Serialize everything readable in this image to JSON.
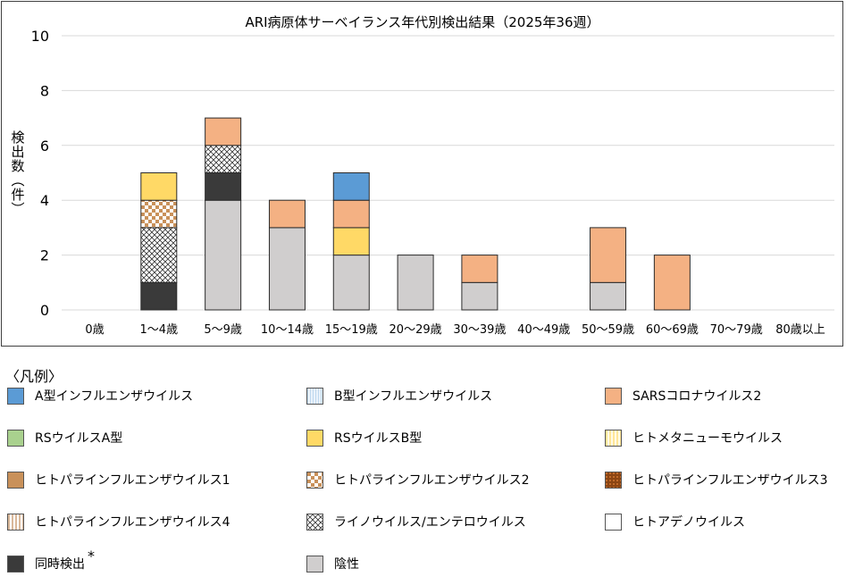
{
  "chart_data": {
    "type": "bar",
    "stacked": true,
    "title": "ARI病原体サーベイランス年代別検出結果（2025年36週）",
    "xlabel": "",
    "ylabel": "検出数（件）",
    "ylabel_chars": [
      "検",
      "出",
      "数",
      "︵",
      "件",
      "︶"
    ],
    "ylim": [
      0,
      10
    ],
    "yticks": [
      "0",
      "2",
      "4",
      "6",
      "8",
      "10"
    ],
    "grid": true,
    "categories": [
      "0歳",
      "1～4歳",
      "5～9歳",
      "10～14歳",
      "15～19歳",
      "20～29歳",
      "30～39歳",
      "40～49歳",
      "50～59歳",
      "60～69歳",
      "70～79歳",
      "80歳以上"
    ],
    "series": [
      {
        "name": "陰性",
        "key": "negative",
        "values": [
          0,
          0,
          4,
          3,
          2,
          2,
          1,
          0,
          1,
          0,
          0,
          0
        ]
      },
      {
        "name": "同時検出",
        "key": "coinfection",
        "values": [
          0,
          1,
          1,
          0,
          0,
          0,
          0,
          0,
          0,
          0,
          0,
          0
        ]
      },
      {
        "name": "ライノウイルス/エンテロウイルス",
        "key": "rhino",
        "values": [
          0,
          2,
          1,
          0,
          0,
          0,
          0,
          0,
          0,
          0,
          0,
          0
        ]
      },
      {
        "name": "ヒトパラインフルエンザウイルス2",
        "key": "hpiv2",
        "values": [
          0,
          1,
          0,
          0,
          0,
          0,
          0,
          0,
          0,
          0,
          0,
          0
        ]
      },
      {
        "name": "RSウイルスB型",
        "key": "rsvb",
        "values": [
          0,
          1,
          0,
          0,
          1,
          0,
          0,
          0,
          0,
          0,
          0,
          0
        ]
      },
      {
        "name": "SARSコロナウイルス2",
        "key": "sars2",
        "values": [
          0,
          0,
          1,
          1,
          1,
          0,
          1,
          0,
          2,
          2,
          0,
          0
        ]
      },
      {
        "name": "A型インフルエンザウイルス",
        "key": "flua",
        "values": [
          0,
          0,
          0,
          0,
          1,
          0,
          0,
          0,
          0,
          0,
          0,
          0
        ]
      }
    ]
  },
  "legend": {
    "heading": "〈凡例〉",
    "footnote_mark": "*",
    "items": [
      {
        "label": "A型インフルエンザウイルス",
        "key": "flua",
        "color": "#5b9bd5"
      },
      {
        "label": "B型インフルエンザウイルス",
        "key": "flub",
        "color": "#ddebf7"
      },
      {
        "label": "SARSコロナウイルス2",
        "key": "sars2",
        "color": "#f4b183"
      },
      {
        "label": "RSウイルスA型",
        "key": "rsva",
        "color": "#a9d18e"
      },
      {
        "label": "RSウイルスB型",
        "key": "rsvb",
        "color": "#ffd966"
      },
      {
        "label": "ヒトメタニューモウイルス",
        "key": "hmpv",
        "color": "#fff2cc"
      },
      {
        "label": "ヒトパラインフルエンザウイルス1",
        "key": "hpiv1",
        "color": "#c9915a"
      },
      {
        "label": "ヒトパラインフルエンザウイルス2",
        "key": "hpiv2",
        "color": "#c9915a"
      },
      {
        "label": "ヒトパラインフルエンザウイルス3",
        "key": "hpiv3",
        "color": "#8b4513"
      },
      {
        "label": "ヒトパラインフルエンザウイルス4",
        "key": "hpiv4",
        "color": "#d9b89a"
      },
      {
        "label": "ライノウイルス/エンテロウイルス",
        "key": "rhino",
        "color": "#404040"
      },
      {
        "label": "ヒトアデノウイルス",
        "key": "adeno",
        "color": "#ffffff"
      },
      {
        "label": "同時検出",
        "key": "coinfection",
        "color": "#3a3a3a"
      },
      {
        "label": "陰性",
        "key": "negative",
        "color": "#d0cece"
      }
    ]
  }
}
